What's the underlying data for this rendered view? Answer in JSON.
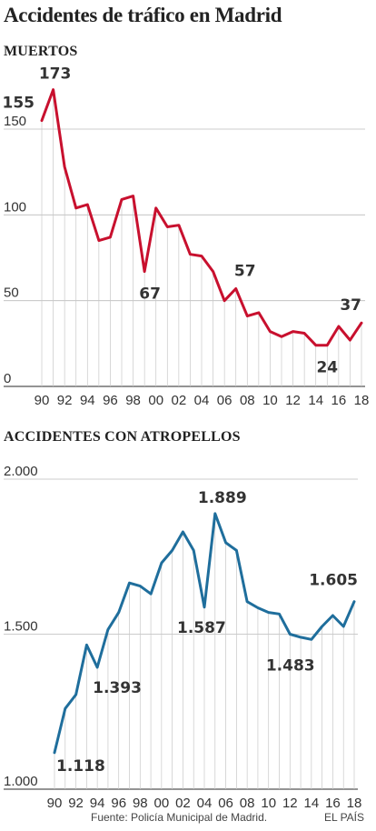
{
  "title": "Accidentes de tráfico en Madrid",
  "source": "Fuente: Policía Municipal de Madrid.",
  "brand": "EL PAÍS",
  "chart_data": [
    {
      "type": "line",
      "title": "MUERTOS",
      "color": "#c8102e",
      "x_tick_labels": [
        "90",
        "92",
        "94",
        "96",
        "98",
        "00",
        "02",
        "04",
        "06",
        "08",
        "10",
        "12",
        "14",
        "16",
        "18"
      ],
      "y_ticks": [
        0,
        50,
        100,
        150
      ],
      "y_tick_labels": [
        "0",
        "50",
        "100",
        "150"
      ],
      "ylim": [
        0,
        190
      ],
      "years": [
        1990,
        1991,
        1992,
        1993,
        1994,
        1995,
        1996,
        1997,
        1998,
        1999,
        2000,
        2001,
        2002,
        2003,
        2004,
        2005,
        2006,
        2007,
        2008,
        2009,
        2010,
        2011,
        2012,
        2013,
        2014,
        2015,
        2016,
        2017,
        2018
      ],
      "values": [
        155,
        173,
        128,
        104,
        106,
        85,
        87,
        109,
        111,
        67,
        104,
        93,
        94,
        77,
        76,
        67,
        50,
        57,
        41,
        43,
        32,
        29,
        32,
        31,
        24,
        24,
        35,
        27,
        37
      ],
      "annotations": [
        {
          "index": 0,
          "label": "155"
        },
        {
          "index": 1,
          "label": "173"
        },
        {
          "index": 9,
          "label": "67"
        },
        {
          "index": 17,
          "label": "57"
        },
        {
          "index": 25,
          "label": "24"
        },
        {
          "index": 28,
          "label": "37"
        }
      ]
    },
    {
      "type": "line",
      "title": "ACCIDENTES CON ATROPELLOS",
      "color": "#1f6e9c",
      "x_tick_labels": [
        "90",
        "92",
        "94",
        "96",
        "98",
        "00",
        "02",
        "04",
        "06",
        "08",
        "10",
        "12",
        "14",
        "16",
        "18"
      ],
      "y_ticks": [
        1000,
        1500,
        2000
      ],
      "y_tick_labels": [
        "1.000",
        "1.500",
        "2.000"
      ],
      "ylim": [
        1000,
        2000
      ],
      "years": [
        1990,
        1991,
        1992,
        1993,
        1994,
        1995,
        1996,
        1997,
        1998,
        1999,
        2000,
        2001,
        2002,
        2003,
        2004,
        2005,
        2006,
        2007,
        2008,
        2009,
        2010,
        2011,
        2012,
        2013,
        2014,
        2015,
        2016,
        2017,
        2018
      ],
      "values": [
        1118,
        1260,
        1305,
        1465,
        1393,
        1515,
        1570,
        1665,
        1655,
        1630,
        1730,
        1770,
        1830,
        1770,
        1587,
        1889,
        1795,
        1770,
        1605,
        1585,
        1570,
        1565,
        1500,
        1490,
        1483,
        1525,
        1560,
        1525,
        1605
      ],
      "annotations": [
        {
          "index": 0,
          "label": "1.118"
        },
        {
          "index": 4,
          "label": "1.393"
        },
        {
          "index": 14,
          "label": "1.587"
        },
        {
          "index": 15,
          "label": "1.889"
        },
        {
          "index": 24,
          "label": "1.483"
        },
        {
          "index": 28,
          "label": "1.605"
        }
      ]
    }
  ]
}
